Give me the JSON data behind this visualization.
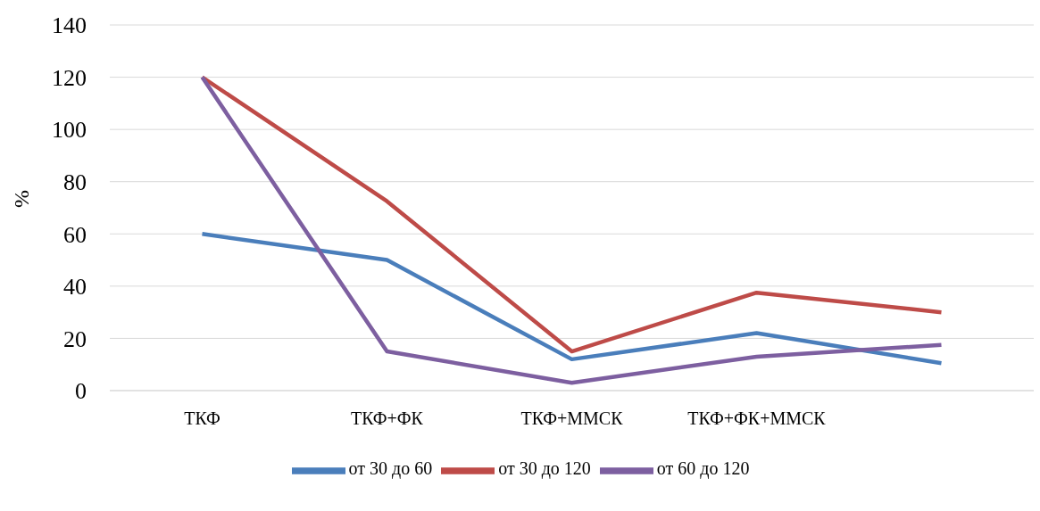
{
  "chart_data": {
    "type": "line",
    "ylabel": "%",
    "categories": [
      "ТКФ",
      "ТКФ+ФК",
      "ТКФ+ММСК",
      "ТКФ+ФК+ММСК",
      null
    ],
    "series": [
      {
        "name": "от 30 до 60",
        "color": "#4a7ebb",
        "values": [
          60,
          50,
          12,
          22,
          10.5
        ]
      },
      {
        "name": "от 30 до 120",
        "color": "#be4b48",
        "values": [
          120,
          72.5,
          15,
          37.5,
          30
        ]
      },
      {
        "name": "от 60 до 120",
        "color": "#7d5fa0",
        "values": [
          120,
          15,
          3,
          13,
          17.5
        ]
      }
    ],
    "ylim": [
      0,
      140
    ],
    "yticks": [
      0,
      20,
      40,
      60,
      80,
      100,
      120,
      140
    ],
    "grid": "y",
    "legend": "bottom",
    "marker": "none",
    "line_style": "solid"
  }
}
